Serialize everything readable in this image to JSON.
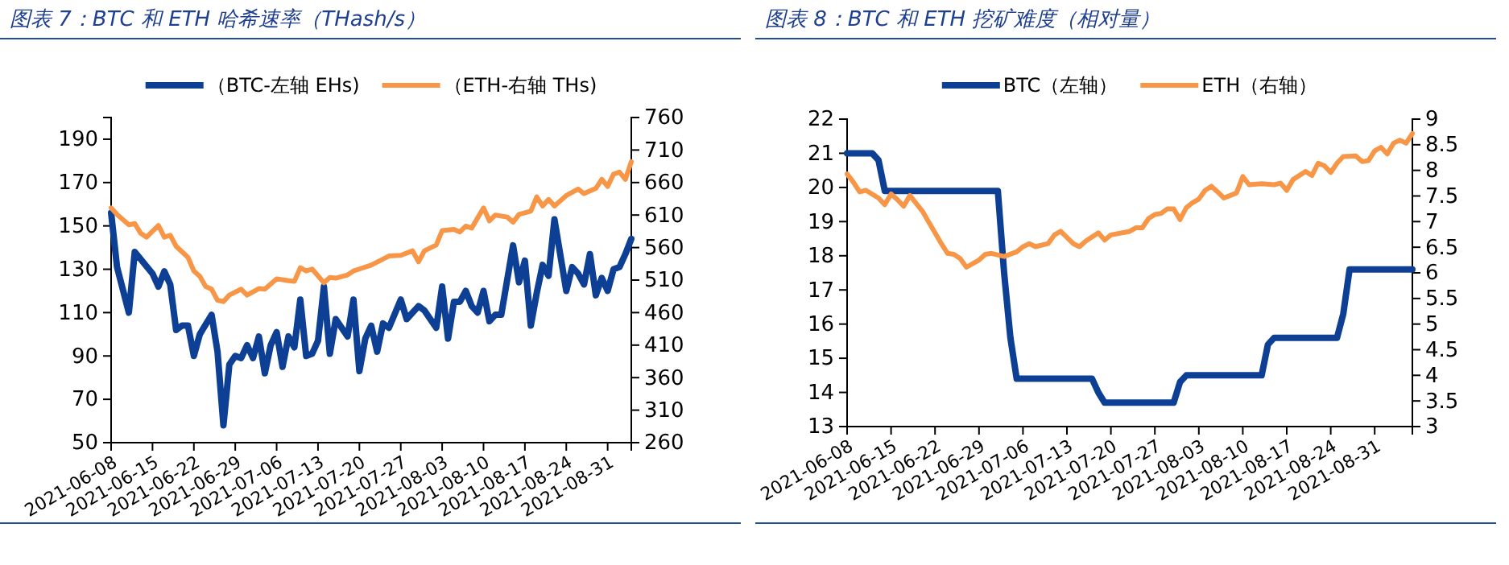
{
  "chart_data": [
    {
      "type": "line",
      "title": "图表 7：BTC 和 ETH 哈希速率（THash/s）",
      "legend": "top",
      "grid": false,
      "xlim": [
        "2021-06-08",
        "2021-09-04"
      ],
      "xticks": [
        "2021-06-08",
        "2021-06-15",
        "2021-06-22",
        "2021-06-29",
        "2021-07-06",
        "2021-07-13",
        "2021-07-20",
        "2021-07-27",
        "2021-08-03",
        "2021-08-10",
        "2021-08-17",
        "2021-08-24",
        "2021-08-31"
      ],
      "ylim": [
        50,
        200
      ],
      "yticks": [
        50,
        70,
        90,
        110,
        130,
        150,
        170,
        190
      ],
      "y2lim": [
        260,
        760
      ],
      "y2ticks": [
        260,
        310,
        360,
        410,
        460,
        510,
        560,
        610,
        660,
        710,
        760
      ],
      "series": [
        {
          "name": "（BTC-左轴 EHs)",
          "color": "#0d3f95",
          "axis": "y",
          "x": [
            "2021-06-08",
            "2021-06-09",
            "2021-06-11",
            "2021-06-12",
            "2021-06-15",
            "2021-06-16",
            "2021-06-17",
            "2021-06-18",
            "2021-06-19",
            "2021-06-20",
            "2021-06-21",
            "2021-06-22",
            "2021-06-23",
            "2021-06-25",
            "2021-06-26",
            "2021-06-27",
            "2021-06-28",
            "2021-06-29",
            "2021-06-30",
            "2021-07-01",
            "2021-07-02",
            "2021-07-03",
            "2021-07-04",
            "2021-07-05",
            "2021-07-06",
            "2021-07-07",
            "2021-07-08",
            "2021-07-09",
            "2021-07-10",
            "2021-07-11",
            "2021-07-12",
            "2021-07-13",
            "2021-07-14",
            "2021-07-15",
            "2021-07-16",
            "2021-07-18",
            "2021-07-19",
            "2021-07-20",
            "2021-07-21",
            "2021-07-22",
            "2021-07-23",
            "2021-07-24",
            "2021-07-25",
            "2021-07-27",
            "2021-07-28",
            "2021-07-30",
            "2021-07-31",
            "2021-08-02",
            "2021-08-03",
            "2021-08-04",
            "2021-08-05",
            "2021-08-06",
            "2021-08-07",
            "2021-08-08",
            "2021-08-09",
            "2021-08-10",
            "2021-08-11",
            "2021-08-12",
            "2021-08-13",
            "2021-08-15",
            "2021-08-16",
            "2021-08-17",
            "2021-08-18",
            "2021-08-19",
            "2021-08-20",
            "2021-08-21",
            "2021-08-22",
            "2021-08-24",
            "2021-08-25",
            "2021-08-26",
            "2021-08-27",
            "2021-08-28",
            "2021-08-29",
            "2021-08-30",
            "2021-08-31",
            "2021-09-01",
            "2021-09-02",
            "2021-09-03",
            "2021-09-04"
          ],
          "values": [
            156,
            131,
            110,
            138,
            128,
            122,
            129,
            123,
            102,
            104,
            104,
            90,
            100,
            109,
            92,
            58,
            86,
            90,
            89,
            95,
            89,
            99,
            82,
            95,
            101,
            85,
            99,
            94,
            116,
            90,
            91,
            97,
            122,
            91,
            107,
            99,
            116,
            83,
            98,
            104,
            92,
            105,
            103,
            116,
            107,
            113,
            111,
            103,
            122,
            98,
            115,
            115,
            120,
            113,
            110,
            120,
            106,
            109,
            109,
            141,
            124,
            134,
            104,
            119,
            132,
            127,
            153,
            120,
            131,
            128,
            123,
            137,
            118,
            126,
            120,
            130,
            131,
            137,
            144
          ]
        },
        {
          "name": "（ETH-右轴 THs)",
          "color": "#f79646",
          "axis": "y2",
          "x": [
            "2021-06-08",
            "2021-06-09",
            "2021-06-11",
            "2021-06-12",
            "2021-06-13",
            "2021-06-14",
            "2021-06-16",
            "2021-06-17",
            "2021-06-18",
            "2021-06-19",
            "2021-06-21",
            "2021-06-22",
            "2021-06-23",
            "2021-06-24",
            "2021-06-25",
            "2021-06-26",
            "2021-06-27",
            "2021-06-28",
            "2021-06-30",
            "2021-07-01",
            "2021-07-03",
            "2021-07-04",
            "2021-07-06",
            "2021-07-08",
            "2021-07-09",
            "2021-07-10",
            "2021-07-11",
            "2021-07-12",
            "2021-07-14",
            "2021-07-15",
            "2021-07-16",
            "2021-07-18",
            "2021-07-19",
            "2021-07-20",
            "2021-07-22",
            "2021-07-25",
            "2021-07-27",
            "2021-07-29",
            "2021-07-30",
            "2021-07-31",
            "2021-08-02",
            "2021-08-03",
            "2021-08-05",
            "2021-08-06",
            "2021-08-07",
            "2021-08-08",
            "2021-08-10",
            "2021-08-11",
            "2021-08-12",
            "2021-08-14",
            "2021-08-15",
            "2021-08-16",
            "2021-08-18",
            "2021-08-19",
            "2021-08-20",
            "2021-08-21",
            "2021-08-22",
            "2021-08-24",
            "2021-08-26",
            "2021-08-27",
            "2021-08-29",
            "2021-08-30",
            "2021-08-31",
            "2021-09-01",
            "2021-09-02",
            "2021-09-03",
            "2021-09-04"
          ],
          "values": [
            621,
            611,
            595,
            597,
            582,
            576,
            594,
            576,
            579,
            562,
            545,
            524,
            516,
            500,
            496,
            479,
            477,
            487,
            496,
            487,
            497,
            496,
            512,
            509,
            508,
            529,
            524,
            527,
            506,
            514,
            513,
            518,
            524,
            527,
            533,
            547,
            548,
            555,
            538,
            555,
            564,
            586,
            588,
            584,
            593,
            590,
            621,
            601,
            610,
            607,
            599,
            611,
            616,
            638,
            624,
            634,
            624,
            640,
            650,
            643,
            651,
            665,
            654,
            673,
            676,
            665,
            692
          ]
        }
      ]
    },
    {
      "type": "line",
      "title": "图表 8：BTC 和 ETH 挖矿难度（相对量）",
      "legend": "top",
      "grid": false,
      "xlim": [
        "2021-06-08",
        "2021-09-06"
      ],
      "xticks": [
        "2021-06-08",
        "2021-06-15",
        "2021-06-22",
        "2021-06-29",
        "2021-07-06",
        "2021-07-13",
        "2021-07-20",
        "2021-07-27",
        "2021-08-03",
        "2021-08-10",
        "2021-08-17",
        "2021-08-24",
        "2021-08-31"
      ],
      "ylim": [
        13,
        22
      ],
      "yticks": [
        13,
        14,
        15,
        16,
        17,
        18,
        19,
        20,
        21,
        22
      ],
      "y2lim": [
        3,
        9
      ],
      "y2ticks": [
        3,
        3.5,
        4,
        4.5,
        5,
        5.5,
        6,
        6.5,
        7,
        7.5,
        8,
        8.5,
        9
      ],
      "series": [
        {
          "name": "BTC（左轴）",
          "color": "#0d3f95",
          "axis": "y",
          "x": [
            "2021-06-08",
            "2021-06-12",
            "2021-06-13",
            "2021-06-14",
            "2021-07-02",
            "2021-07-03",
            "2021-07-04",
            "2021-07-05",
            "2021-07-17",
            "2021-07-18",
            "2021-07-19",
            "2021-07-30",
            "2021-07-31",
            "2021-08-01",
            "2021-08-13",
            "2021-08-14",
            "2021-08-15",
            "2021-08-25",
            "2021-08-26",
            "2021-08-27",
            "2021-09-06"
          ],
          "values": [
            21,
            21,
            20.8,
            19.9,
            19.9,
            17.5,
            15.6,
            14.4,
            14.4,
            14,
            13.7,
            13.7,
            14.3,
            14.5,
            14.5,
            15.4,
            15.6,
            15.6,
            16.3,
            17.6,
            17.6
          ]
        },
        {
          "name": "ETH（右轴）",
          "color": "#f79646",
          "axis": "y2",
          "x": [
            "2021-06-08",
            "2021-06-09",
            "2021-06-10",
            "2021-06-11",
            "2021-06-13",
            "2021-06-14",
            "2021-06-15",
            "2021-06-16",
            "2021-06-17",
            "2021-06-18",
            "2021-06-20",
            "2021-06-21",
            "2021-06-22",
            "2021-06-23",
            "2021-06-24",
            "2021-06-25",
            "2021-06-26",
            "2021-06-27",
            "2021-06-29",
            "2021-06-30",
            "2021-07-01",
            "2021-07-03",
            "2021-07-05",
            "2021-07-06",
            "2021-07-07",
            "2021-07-08",
            "2021-07-10",
            "2021-07-11",
            "2021-07-12",
            "2021-07-14",
            "2021-07-15",
            "2021-07-16",
            "2021-07-18",
            "2021-07-19",
            "2021-07-20",
            "2021-07-23",
            "2021-07-24",
            "2021-07-25",
            "2021-07-26",
            "2021-07-27",
            "2021-07-28",
            "2021-07-29",
            "2021-07-30",
            "2021-07-31",
            "2021-08-01",
            "2021-08-02",
            "2021-08-03",
            "2021-08-04",
            "2021-08-05",
            "2021-08-06",
            "2021-08-07",
            "2021-08-08",
            "2021-08-09",
            "2021-08-10",
            "2021-08-11",
            "2021-08-13",
            "2021-08-15",
            "2021-08-16",
            "2021-08-17",
            "2021-08-18",
            "2021-08-20",
            "2021-08-21",
            "2021-08-22",
            "2021-08-23",
            "2021-08-24",
            "2021-08-25",
            "2021-08-26",
            "2021-08-28",
            "2021-08-29",
            "2021-08-30",
            "2021-08-31",
            "2021-09-01",
            "2021-09-02",
            "2021-09-03",
            "2021-09-04",
            "2021-09-05",
            "2021-09-06"
          ],
          "values": [
            7.93,
            7.77,
            7.58,
            7.61,
            7.46,
            7.33,
            7.54,
            7.43,
            7.3,
            7.51,
            7.2,
            6.99,
            6.78,
            6.57,
            6.38,
            6.36,
            6.28,
            6.11,
            6.25,
            6.36,
            6.38,
            6.32,
            6.41,
            6.51,
            6.57,
            6.51,
            6.57,
            6.74,
            6.81,
            6.57,
            6.51,
            6.62,
            6.78,
            6.64,
            6.74,
            6.81,
            6.88,
            6.88,
            7.06,
            7.14,
            7.16,
            7.25,
            7.25,
            7.04,
            7.27,
            7.37,
            7.44,
            7.61,
            7.69,
            7.58,
            7.46,
            7.51,
            7.56,
            7.88,
            7.72,
            7.74,
            7.72,
            7.75,
            7.61,
            7.82,
            7.98,
            7.9,
            8.14,
            8.09,
            7.96,
            8.14,
            8.27,
            8.28,
            8.17,
            8.19,
            8.38,
            8.45,
            8.32,
            8.53,
            8.59,
            8.53,
            8.72
          ]
        }
      ]
    }
  ]
}
